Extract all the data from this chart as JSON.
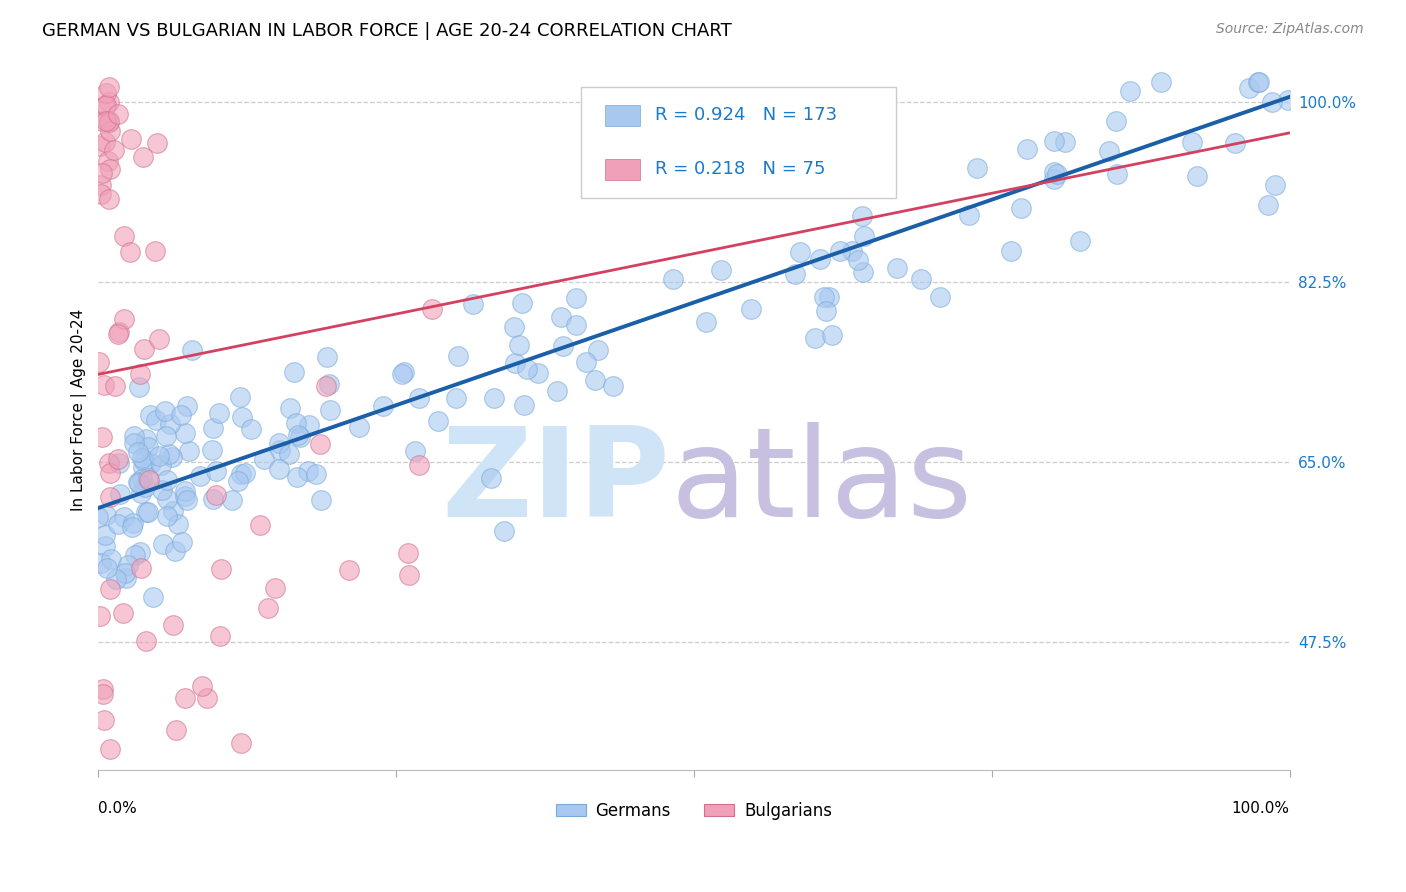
{
  "title": "GERMAN VS BULGARIAN IN LABOR FORCE | AGE 20-24 CORRELATION CHART",
  "source_text": "Source: ZipAtlas.com",
  "ylabel": "In Labor Force | Age 20-24",
  "xlim": [
    0.0,
    1.0
  ],
  "ylim": [
    0.35,
    1.05
  ],
  "yticks": [
    0.475,
    0.65,
    0.825,
    1.0
  ],
  "ytick_labels": [
    "47.5%",
    "65.0%",
    "82.5%",
    "100.0%"
  ],
  "german_R": 0.924,
  "german_N": 173,
  "bulgarian_R": 0.218,
  "bulgarian_N": 75,
  "german_color": "#a8c8f0",
  "bulgarian_color": "#f0a0b8",
  "german_line_color": "#1a5fa8",
  "bulgarian_line_color": "#d44060",
  "watermark_zip_color": "#d0e4f7",
  "watermark_atlas_color": "#c8c0e0",
  "background_color": "#ffffff",
  "legend_german_label": "Germans",
  "legend_bulgarian_label": "Bulgarians",
  "title_fontsize": 13,
  "axis_label_fontsize": 11,
  "tick_fontsize": 11,
  "source_fontsize": 10,
  "german_trend_x": [
    0.0,
    1.0
  ],
  "german_trend_y": [
    0.605,
    1.005
  ],
  "bulgarian_trend_x": [
    0.0,
    1.0
  ],
  "bulgarian_trend_y": [
    0.735,
    0.97
  ]
}
